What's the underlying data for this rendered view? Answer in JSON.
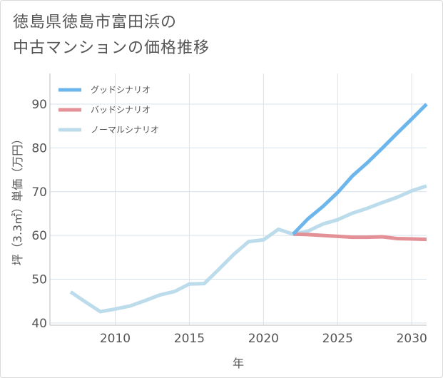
{
  "title": {
    "line1": "徳島県徳島市富田浜の",
    "line2": "中古マンションの価格推移"
  },
  "chart_data": {
    "type": "line",
    "title": "徳島県徳島市富田浜の中古マンションの価格推移",
    "xlabel": "年",
    "ylabel": "坪（3.3㎡）単価（万円）",
    "xlim": [
      2005.6,
      2031
    ],
    "ylim": [
      39.5,
      97
    ],
    "xticks": [
      2010,
      2015,
      2020,
      2025,
      2030
    ],
    "yticks": [
      40,
      50,
      60,
      70,
      80,
      90
    ],
    "grid": true,
    "legend_position": "top-left",
    "series": [
      {
        "name": "グッドシナリオ",
        "color": "#6cb6ec",
        "x": [
          2022,
          2023,
          2024,
          2025,
          2026,
          2027,
          2028,
          2029,
          2030,
          2031
        ],
        "y": [
          60.3,
          63.8,
          66.6,
          69.8,
          73.6,
          76.6,
          79.9,
          83.3,
          86.6,
          90.0
        ]
      },
      {
        "name": "バッドシナリオ",
        "color": "#e39096",
        "x": [
          2022,
          2023,
          2024,
          2025,
          2026,
          2027,
          2028,
          2029,
          2030,
          2031
        ],
        "y": [
          60.3,
          60.2,
          60.0,
          59.8,
          59.6,
          59.6,
          59.7,
          59.3,
          59.2,
          59.1
        ]
      },
      {
        "name": "ノーマルシナリオ",
        "color": "#bcdcec",
        "x": [
          2007,
          2008,
          2009,
          2010,
          2011,
          2012,
          2013,
          2014,
          2015,
          2016,
          2017,
          2018,
          2019,
          2020,
          2021,
          2022,
          2023,
          2024,
          2025,
          2026,
          2027,
          2028,
          2029,
          2030,
          2031
        ],
        "y": [
          47.1,
          44.8,
          42.6,
          43.2,
          43.9,
          45.1,
          46.4,
          47.2,
          48.9,
          49.0,
          52.3,
          55.7,
          58.6,
          59.0,
          61.4,
          60.3,
          61.0,
          62.6,
          63.6,
          65.1,
          66.2,
          67.5,
          68.7,
          70.2,
          71.3
        ]
      }
    ]
  }
}
